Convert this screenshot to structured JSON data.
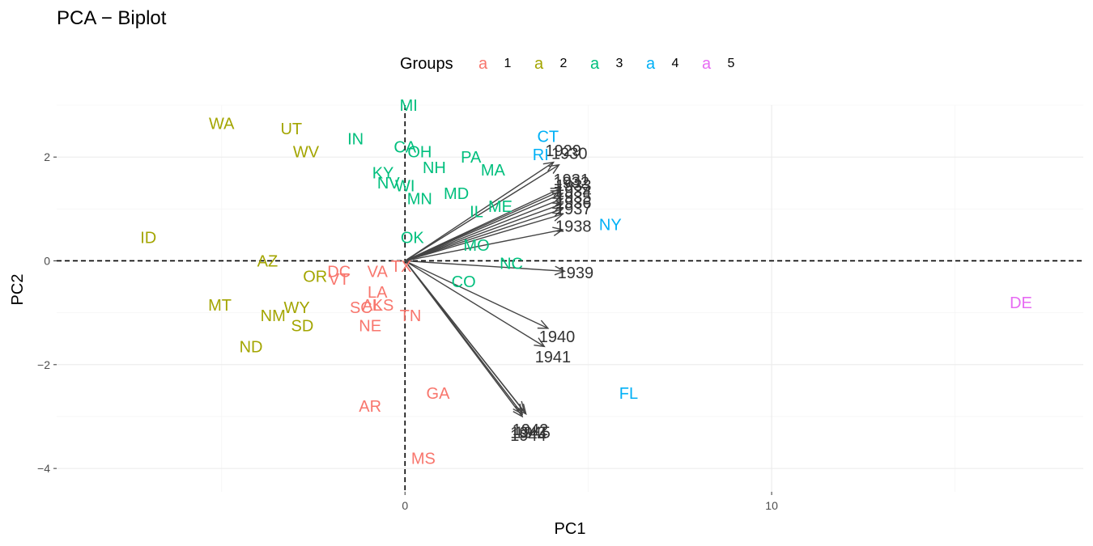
{
  "chart_data": {
    "type": "scatter",
    "title": "PCA − Biplot",
    "xlabel": "PC1",
    "ylabel": "PC2",
    "xlim": [
      -9.5,
      18.5
    ],
    "ylim": [
      -4.45,
      3.0
    ],
    "x_ticks": [
      0,
      10
    ],
    "x_tick_labels": [
      "0",
      "10"
    ],
    "y_ticks": [
      -4,
      -2,
      0,
      2
    ],
    "y_tick_labels": [
      "−4",
      "−2",
      "0",
      "2"
    ],
    "grid": true,
    "legend": {
      "title": "Groups",
      "position": "top",
      "symbol": "a",
      "entries": [
        {
          "label": "1",
          "color": "#F8766D"
        },
        {
          "label": "2",
          "color": "#A3A500"
        },
        {
          "label": "3",
          "color": "#00BF7D"
        },
        {
          "label": "4",
          "color": "#00B0F6"
        },
        {
          "label": "5",
          "color": "#E76BF3"
        }
      ]
    },
    "reference_lines": {
      "x": 0,
      "y": 0,
      "style": "dashed"
    },
    "points": [
      {
        "label": "MI",
        "x": 0.1,
        "y": 3.0,
        "group": 3
      },
      {
        "label": "WA",
        "x": -5.0,
        "y": 2.65,
        "group": 2
      },
      {
        "label": "UT",
        "x": -3.1,
        "y": 2.55,
        "group": 2
      },
      {
        "label": "WV",
        "x": -2.7,
        "y": 2.1,
        "group": 2
      },
      {
        "label": "IN",
        "x": -1.35,
        "y": 2.35,
        "group": 3
      },
      {
        "label": "CA",
        "x": 0.0,
        "y": 2.2,
        "group": 3
      },
      {
        "label": "OH",
        "x": 0.4,
        "y": 2.1,
        "group": 3
      },
      {
        "label": "NH",
        "x": 0.8,
        "y": 1.8,
        "group": 3
      },
      {
        "label": "PA",
        "x": 1.8,
        "y": 2.0,
        "group": 3
      },
      {
        "label": "MA",
        "x": 2.4,
        "y": 1.75,
        "group": 3
      },
      {
        "label": "KY",
        "x": -0.6,
        "y": 1.7,
        "group": 3
      },
      {
        "label": "NV",
        "x": -0.45,
        "y": 1.5,
        "group": 3
      },
      {
        "label": "WI",
        "x": 0.0,
        "y": 1.45,
        "group": 3
      },
      {
        "label": "MN",
        "x": 0.4,
        "y": 1.2,
        "group": 3
      },
      {
        "label": "MD",
        "x": 1.4,
        "y": 1.3,
        "group": 3
      },
      {
        "label": "IL",
        "x": 1.95,
        "y": 0.95,
        "group": 3
      },
      {
        "label": "ME",
        "x": 2.6,
        "y": 1.05,
        "group": 3
      },
      {
        "label": "CT",
        "x": 3.9,
        "y": 2.4,
        "group": 4
      },
      {
        "label": "RI",
        "x": 3.7,
        "y": 2.05,
        "group": 4
      },
      {
        "label": "NY",
        "x": 5.6,
        "y": 0.7,
        "group": 4
      },
      {
        "label": "ID",
        "x": -7.0,
        "y": 0.45,
        "group": 2
      },
      {
        "label": "OK",
        "x": 0.2,
        "y": 0.45,
        "group": 3
      },
      {
        "label": "MO",
        "x": 1.95,
        "y": 0.3,
        "group": 3
      },
      {
        "label": "NC",
        "x": 2.9,
        "y": -0.05,
        "group": 3
      },
      {
        "label": "AZ",
        "x": -3.75,
        "y": 0.0,
        "group": 2
      },
      {
        "label": "OR",
        "x": -2.45,
        "y": -0.3,
        "group": 2
      },
      {
        "label": "DC",
        "x": -1.8,
        "y": -0.2,
        "group": 1
      },
      {
        "label": "VT",
        "x": -1.8,
        "y": -0.35,
        "group": 1
      },
      {
        "label": "VA",
        "x": -0.75,
        "y": -0.2,
        "group": 1
      },
      {
        "label": "TX",
        "x": -0.1,
        "y": -0.1,
        "group": 1
      },
      {
        "label": "CO",
        "x": 1.6,
        "y": -0.4,
        "group": 3
      },
      {
        "label": "LA",
        "x": -0.75,
        "y": -0.6,
        "group": 1
      },
      {
        "label": "KS",
        "x": -0.6,
        "y": -0.85,
        "group": 1
      },
      {
        "label": "SC",
        "x": -1.2,
        "y": -0.9,
        "group": 1
      },
      {
        "label": "AL",
        "x": -0.9,
        "y": -0.85,
        "group": 1
      },
      {
        "label": "NE",
        "x": -0.95,
        "y": -1.25,
        "group": 1
      },
      {
        "label": "TN",
        "x": 0.15,
        "y": -1.05,
        "group": 1
      },
      {
        "label": "MT",
        "x": -5.05,
        "y": -0.85,
        "group": 2
      },
      {
        "label": "NM",
        "x": -3.6,
        "y": -1.05,
        "group": 2
      },
      {
        "label": "WY",
        "x": -2.95,
        "y": -0.9,
        "group": 2
      },
      {
        "label": "SD",
        "x": -2.8,
        "y": -1.25,
        "group": 2
      },
      {
        "label": "ND",
        "x": -4.2,
        "y": -1.65,
        "group": 2
      },
      {
        "label": "GA",
        "x": 0.9,
        "y": -2.55,
        "group": 1
      },
      {
        "label": "AR",
        "x": -0.95,
        "y": -2.8,
        "group": 1
      },
      {
        "label": "MS",
        "x": 0.5,
        "y": -3.8,
        "group": 1
      },
      {
        "label": "FL",
        "x": 6.1,
        "y": -2.55,
        "group": 4
      },
      {
        "label": "DE",
        "x": 16.8,
        "y": -0.8,
        "group": 5
      }
    ],
    "loadings": [
      {
        "label": "1929",
        "x": 4.05,
        "y": 1.9
      },
      {
        "label": "1930",
        "x": 4.2,
        "y": 1.85
      },
      {
        "label": "1931",
        "x": 4.25,
        "y": 1.4
      },
      {
        "label": "1932",
        "x": 4.25,
        "y": 1.35
      },
      {
        "label": "1933",
        "x": 4.3,
        "y": 1.3
      },
      {
        "label": "1934",
        "x": 4.3,
        "y": 1.2
      },
      {
        "label": "1935",
        "x": 4.3,
        "y": 1.1
      },
      {
        "label": "1936",
        "x": 4.3,
        "y": 1.0
      },
      {
        "label": "1937",
        "x": 4.3,
        "y": 0.9
      },
      {
        "label": "1938",
        "x": 4.3,
        "y": 0.6
      },
      {
        "label": "1939",
        "x": 4.35,
        "y": -0.2
      },
      {
        "label": "1940",
        "x": 3.9,
        "y": -1.3
      },
      {
        "label": "1941",
        "x": 3.8,
        "y": -1.65
      },
      {
        "label": "1942",
        "x": 3.25,
        "y": -2.9
      },
      {
        "label": "1943",
        "x": 3.2,
        "y": -2.95
      },
      {
        "label": "1944",
        "x": 3.2,
        "y": -3.0
      },
      {
        "label": "1945",
        "x": 3.3,
        "y": -2.95
      }
    ]
  }
}
